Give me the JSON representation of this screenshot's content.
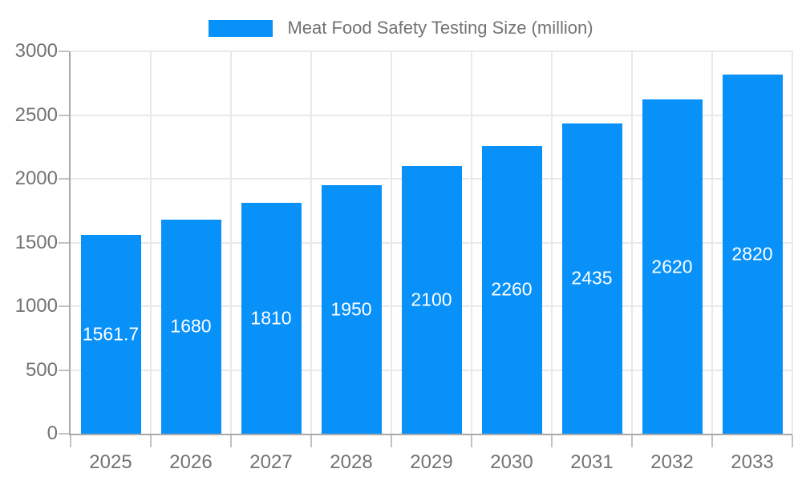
{
  "chart_data": {
    "type": "bar",
    "title": "Meat Food Safety Testing Size (million)",
    "categories": [
      "2025",
      "2026",
      "2027",
      "2028",
      "2029",
      "2030",
      "2031",
      "2032",
      "2033"
    ],
    "series": [
      {
        "name": "Meat Food Safety Testing Size (million)",
        "values": [
          1561.7,
          1680,
          1810,
          1950,
          2100,
          2260,
          2435,
          2620,
          2820
        ]
      }
    ],
    "data_labels": [
      "1561.7",
      "1680",
      "1810",
      "1950",
      "2100",
      "2260",
      "2435",
      "2620",
      "2820"
    ],
    "xlabel": "",
    "ylabel": "",
    "ylim": [
      0,
      3000
    ],
    "yticks": [
      0,
      500,
      1000,
      1500,
      2000,
      2500,
      3000
    ],
    "grid": "both",
    "legend_position": "top"
  },
  "style": {
    "bar_color": "#0991fa",
    "bar_label_color": "#ffffff",
    "grid_color": "#e9e9e9",
    "axis_color": "#a8a8a8",
    "tick_color": "#c2c2c2",
    "text_color": "#737373",
    "background": "#ffffff"
  }
}
